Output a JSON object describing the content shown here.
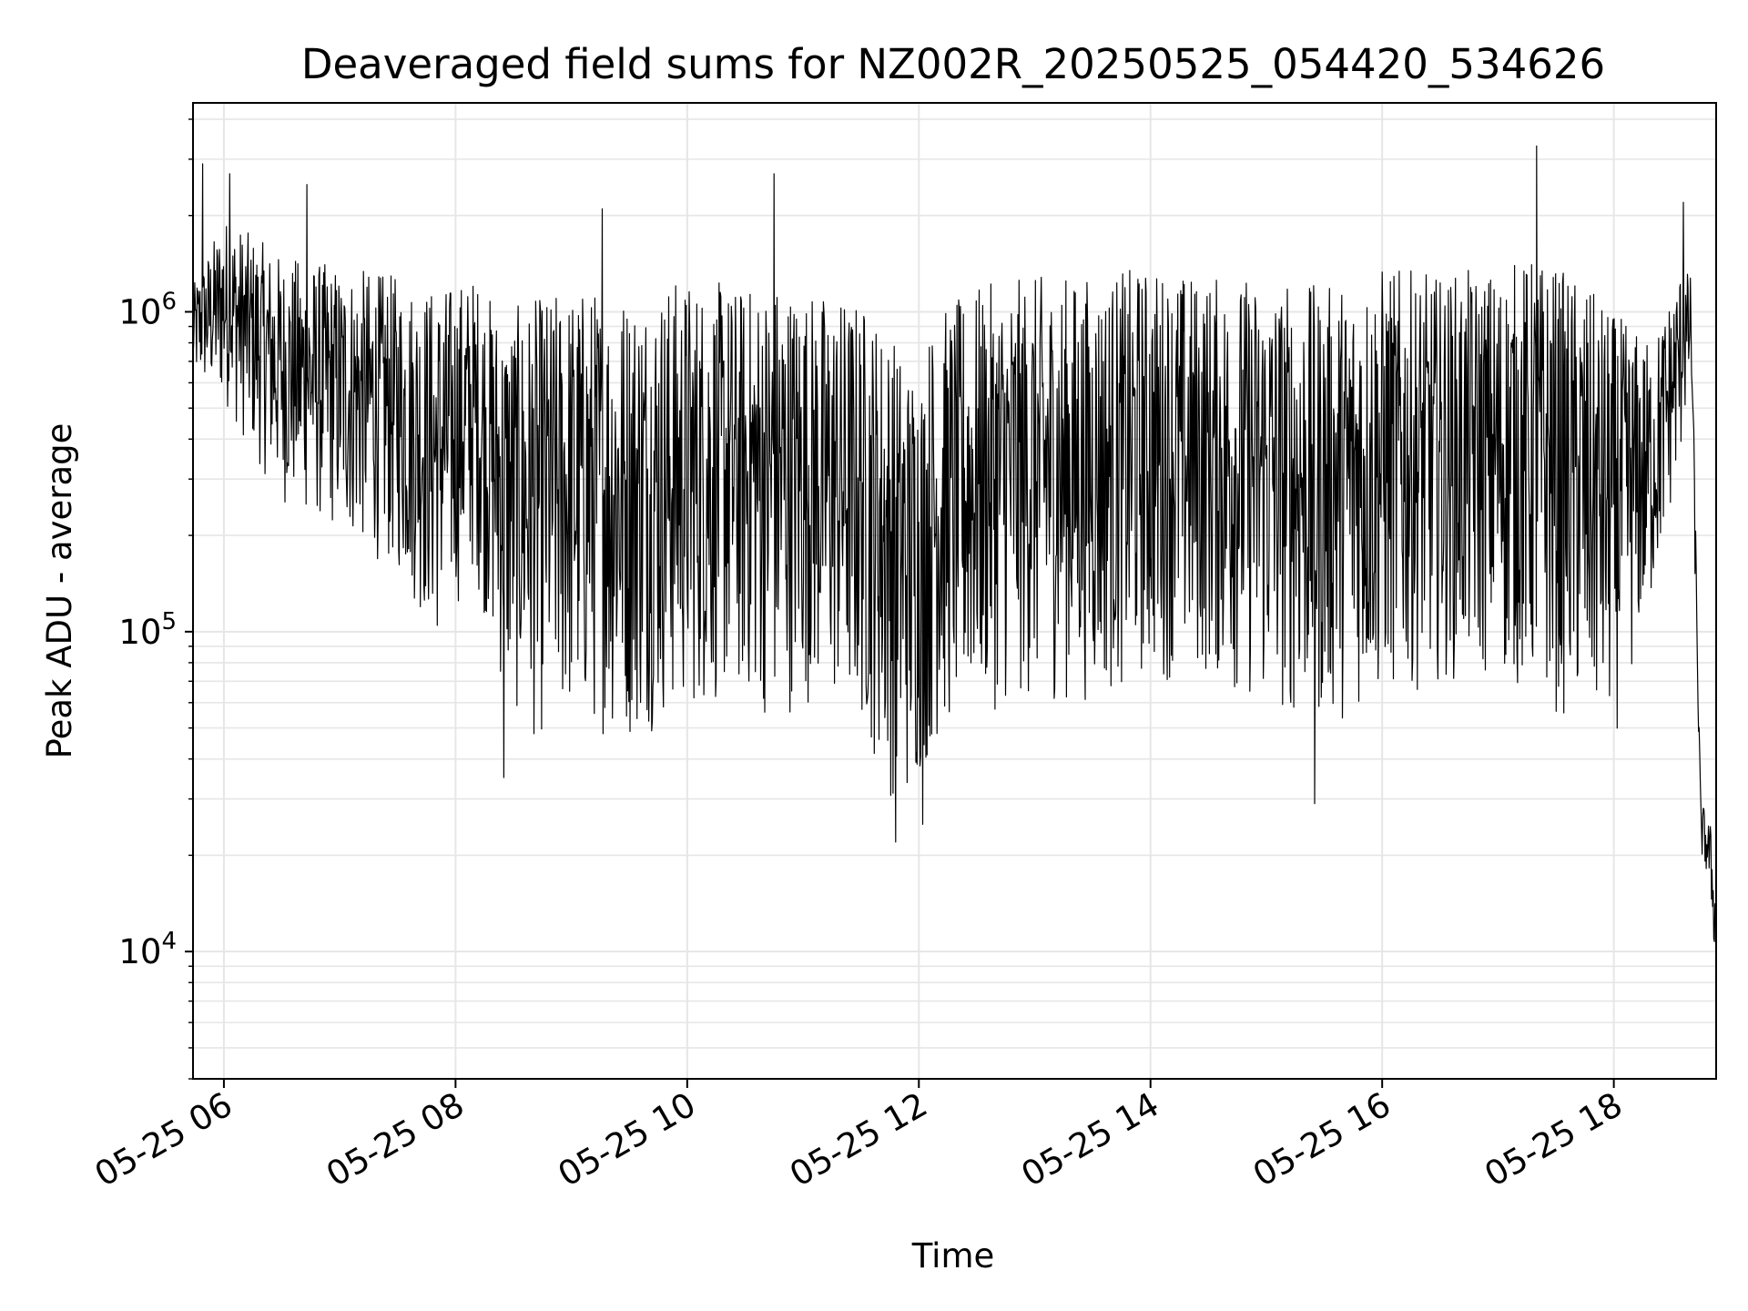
{
  "chart_data": {
    "type": "line",
    "title": "Deaveraged field sums for NZ002R_20250525_054420_534626",
    "xlabel": "Time",
    "ylabel": "Peak ADU - average",
    "y_scale": "log",
    "grid": true,
    "line_color": "#000000",
    "grid_color": "#e6e6e6",
    "xlim": [
      "2025-05-25 05:44",
      "2025-05-25 18:53"
    ],
    "ylim": [
      4000,
      4500000
    ],
    "x_ticks": [
      {
        "value": "2025-05-25 06:00",
        "label": "05-25 06"
      },
      {
        "value": "2025-05-25 08:00",
        "label": "05-25 08"
      },
      {
        "value": "2025-05-25 10:00",
        "label": "05-25 10"
      },
      {
        "value": "2025-05-25 12:00",
        "label": "05-25 12"
      },
      {
        "value": "2025-05-25 14:00",
        "label": "05-25 14"
      },
      {
        "value": "2025-05-25 16:00",
        "label": "05-25 16"
      },
      {
        "value": "2025-05-25 18:00",
        "label": "05-25 18"
      }
    ],
    "y_ticks": [
      {
        "value": 10000,
        "base": "10",
        "exp": "4"
      },
      {
        "value": 100000,
        "base": "10",
        "exp": "5"
      },
      {
        "value": 1000000,
        "base": "10",
        "exp": "6"
      }
    ],
    "envelope": {
      "x": [
        "05:44",
        "06:00",
        "06:30",
        "07:00",
        "07:30",
        "07:50",
        "08:10",
        "08:25",
        "08:40",
        "09:00",
        "09:30",
        "10:00",
        "10:30",
        "10:45",
        "11:00",
        "11:30",
        "11:45",
        "11:55",
        "12:10",
        "12:30",
        "13:00",
        "13:30",
        "14:00",
        "14:30",
        "15:00",
        "15:30",
        "16:00",
        "16:30",
        "17:00",
        "17:20",
        "17:40",
        "18:00",
        "18:20",
        "18:35",
        "18:40",
        "18:45",
        "18:50",
        "18:53"
      ],
      "low": [
        600000,
        500000,
        250000,
        200000,
        150000,
        90000,
        150000,
        60000,
        45000,
        50000,
        45000,
        55000,
        60000,
        50000,
        60000,
        50000,
        30000,
        28000,
        45000,
        55000,
        60000,
        60000,
        70000,
        70000,
        55000,
        50000,
        60000,
        70000,
        70000,
        60000,
        50000,
        45000,
        120000,
        350000,
        600000,
        20000,
        15000,
        8000
      ],
      "high": [
        1200000,
        2000000,
        1500000,
        1400000,
        1300000,
        1200000,
        1300000,
        1000000,
        1100000,
        1200000,
        1200000,
        1300000,
        1200000,
        1300000,
        1200000,
        1100000,
        900000,
        700000,
        1000000,
        1200000,
        1300000,
        1300000,
        1400000,
        1300000,
        1300000,
        1200000,
        1400000,
        1300000,
        1400000,
        1500000,
        1300000,
        1000000,
        800000,
        1400000,
        1300000,
        30000,
        25000,
        15000
      ]
    },
    "spikes": [
      {
        "x": "05:49",
        "y": 2900000
      },
      {
        "x": "06:03",
        "y": 2700000
      },
      {
        "x": "06:43",
        "y": 2500000
      },
      {
        "x": "09:16",
        "y": 2100000
      },
      {
        "x": "10:45",
        "y": 2700000
      },
      {
        "x": "17:20",
        "y": 3300000
      },
      {
        "x": "18:36",
        "y": 2200000
      },
      {
        "x": "08:25",
        "y": 35000
      },
      {
        "x": "11:48",
        "y": 22000
      },
      {
        "x": "12:02",
        "y": 25000
      },
      {
        "x": "15:25",
        "y": 29000
      }
    ]
  }
}
